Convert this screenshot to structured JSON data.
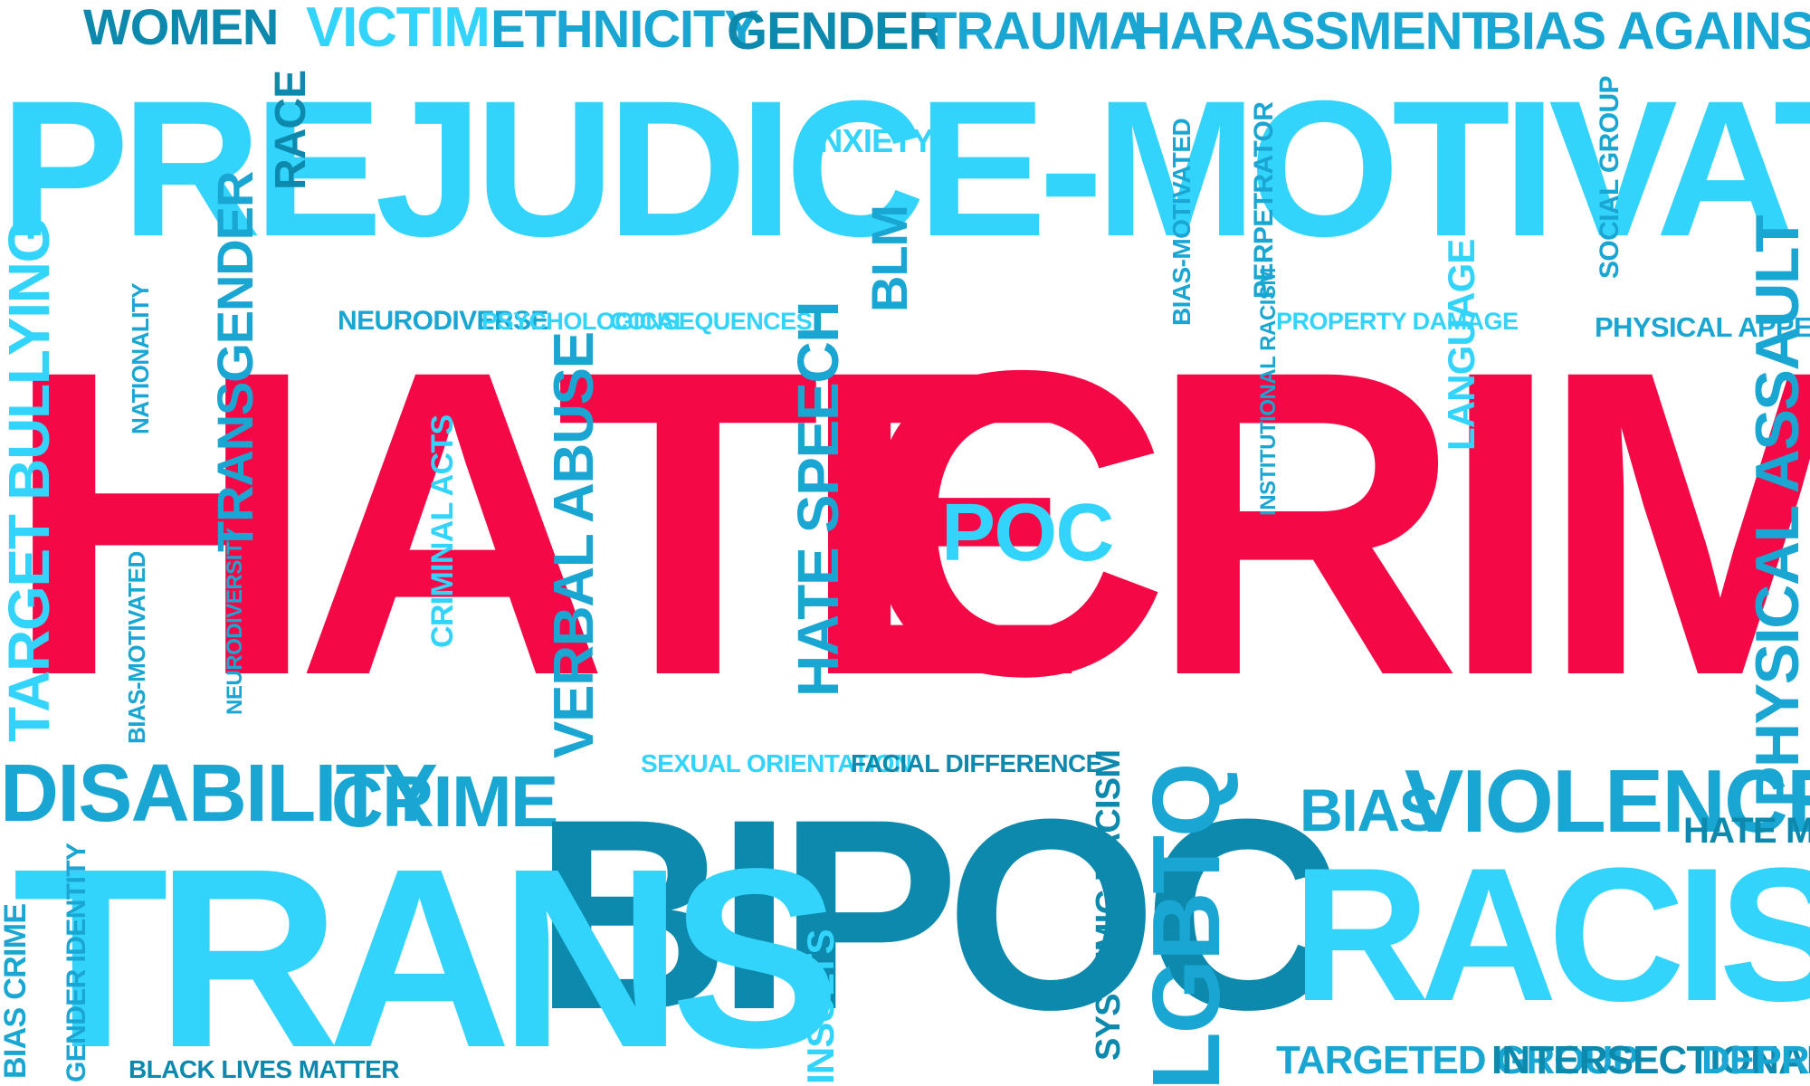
{
  "colors": {
    "primary": "#f50846",
    "light_cyan": "#33d4fb",
    "mid_blue": "#1aa6d3",
    "dark_teal": "#0c89ad",
    "background": "#ffffff"
  },
  "words": {
    "hate": "HATE",
    "crime_big": "CRIME",
    "prejudice": "PREJUDICE-MOTIVATED",
    "bipoc": "BIPOC",
    "trans": "TRANS",
    "racism": "RACISM",
    "women": "WOMEN",
    "victim": "VICTIM",
    "ethnicity": "ETHNICITY",
    "gender": "GENDER",
    "trauma": "TRAUMA",
    "harassment": "HARASSMENT",
    "bias_against": "BIAS AGAINST",
    "race": "RACE",
    "anxiety": "ANXIETY",
    "blm": "BLM",
    "bias_motivated_top": "BIAS-MOTIVATED",
    "perpetrator": "PERPETRATOR",
    "social_group": "SOCIAL GROUP",
    "neurodiverse": "NEURODIVERSE",
    "psychological": "PSYCHOLOGICAL",
    "consequences": "CONSEQUENCES",
    "property_damage": "PROPERTY DAMAGE",
    "physical_appearance": "PHYSICAL APPEARANCE",
    "target_bullying": "TARGET BULLYING",
    "nationality": "NATIONALITY",
    "transgender": "TRANSGENDER",
    "bias_motivated_left": "BIAS-MOTIVATED",
    "neurodiversity": "NEURODIVERSITY",
    "criminal_acts": "CRIMINAL ACTS",
    "verbal_abuse": "VERBAL ABUSE",
    "hate_speech": "HATE SPEECH",
    "poc": "POC",
    "institutional_racism": "INSTITUTIONAL RACISM",
    "language": "LANGUAGE",
    "physical_assault": "PHYSICAL ASSAULT",
    "disability": "DISABILITY",
    "crime_small": "CRIME",
    "sexual_orientation": "SEXUAL ORIENTATION",
    "facial_difference": "FACIAL DIFFERENCE",
    "lgbtq": "LGBTQ",
    "systemic_racism": "SYSTEMIC RACISM",
    "bias": "BIAS",
    "violence": "VIOLENCE",
    "hate_mail": "HATE MAIL",
    "bias_crime": "BIAS CRIME",
    "gender_identity": "GENDER IDENTITY",
    "black_lives_matter": "BLACK LIVES MATTER",
    "insults": "INSULTS",
    "targeted_group": "TARGETED GROUP",
    "intersectional": "INTERSECTIONAL",
    "depression": "DEPRESSION"
  }
}
